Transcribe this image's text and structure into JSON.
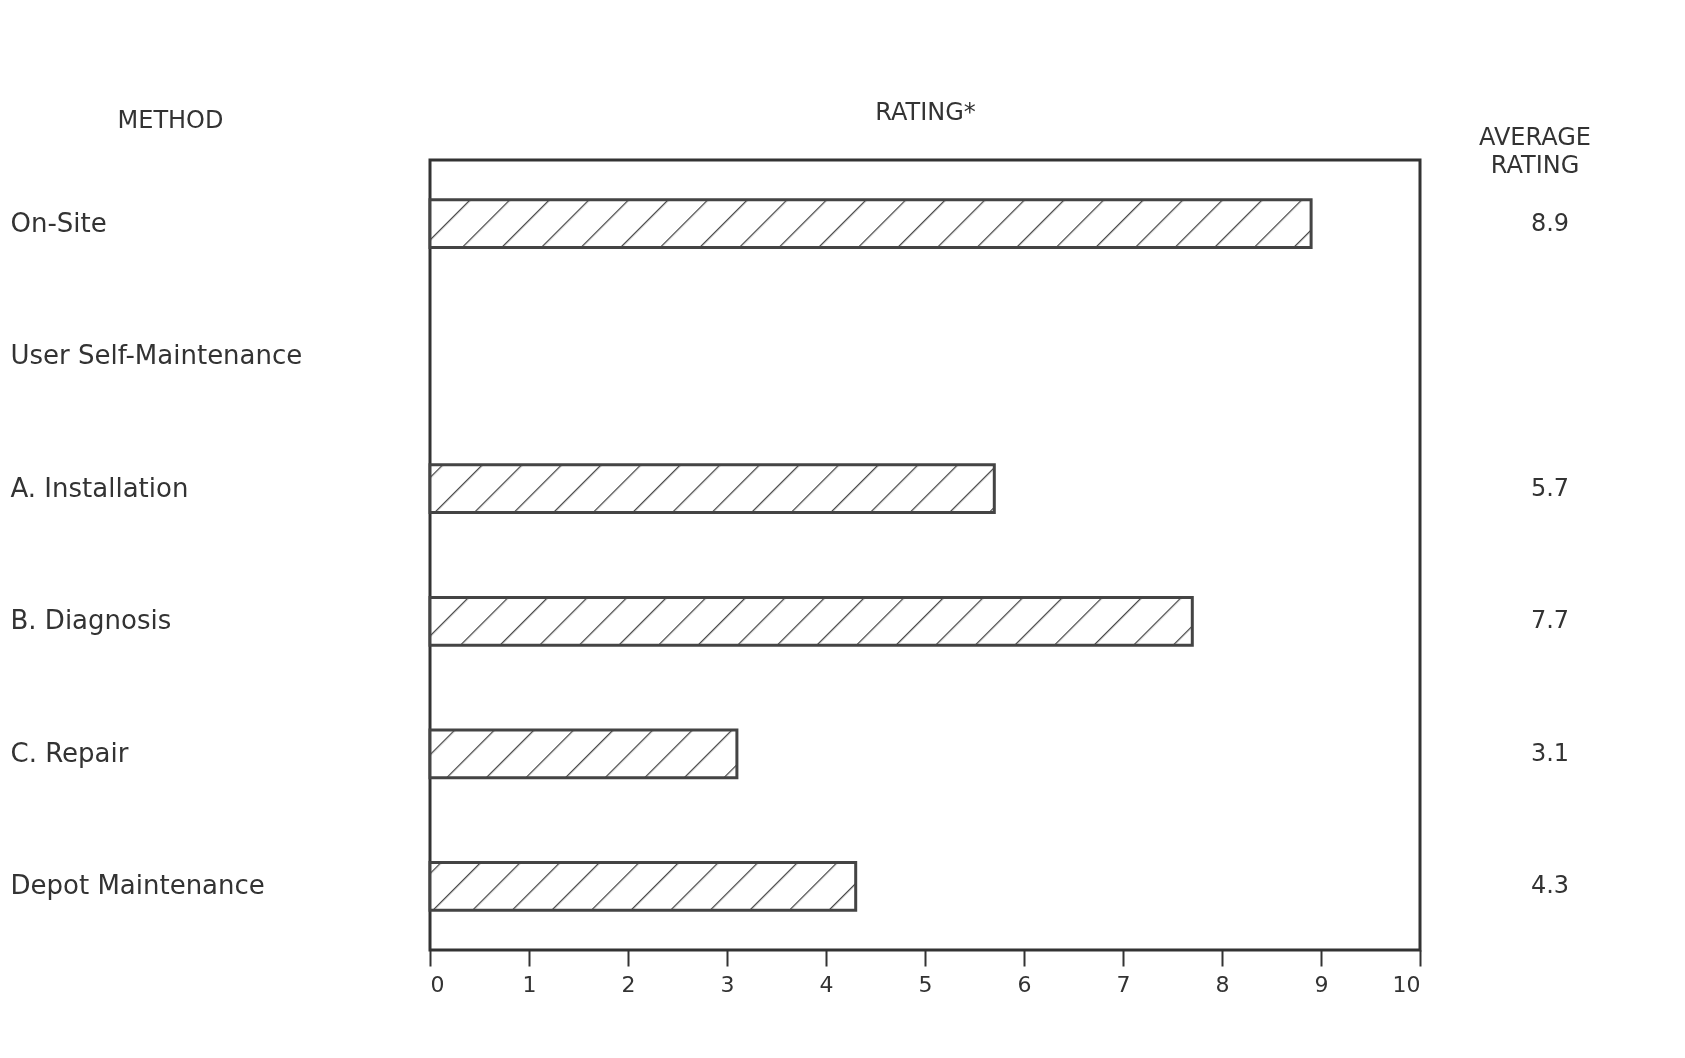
{
  "chart_data": {
    "type": "bar",
    "orientation": "horizontal",
    "ylabel": "METHOD",
    "xlabel": "RATING*",
    "categories": [
      "On-Site",
      "User Self-Maintenance",
      "A. Installation",
      "B. Diagnosis",
      "C. Repair",
      "Depot Maintenance"
    ],
    "values": [
      8.9,
      null,
      5.7,
      7.7,
      3.1,
      4.3
    ],
    "color": "#444444",
    "xlim": [
      0,
      10
    ],
    "xticks": [
      0,
      1,
      2,
      3,
      4,
      5,
      6,
      7,
      8,
      9,
      10
    ],
    "data_labels": true,
    "grid": false,
    "annotations": [
      "AVERAGE RATING"
    ]
  }
}
